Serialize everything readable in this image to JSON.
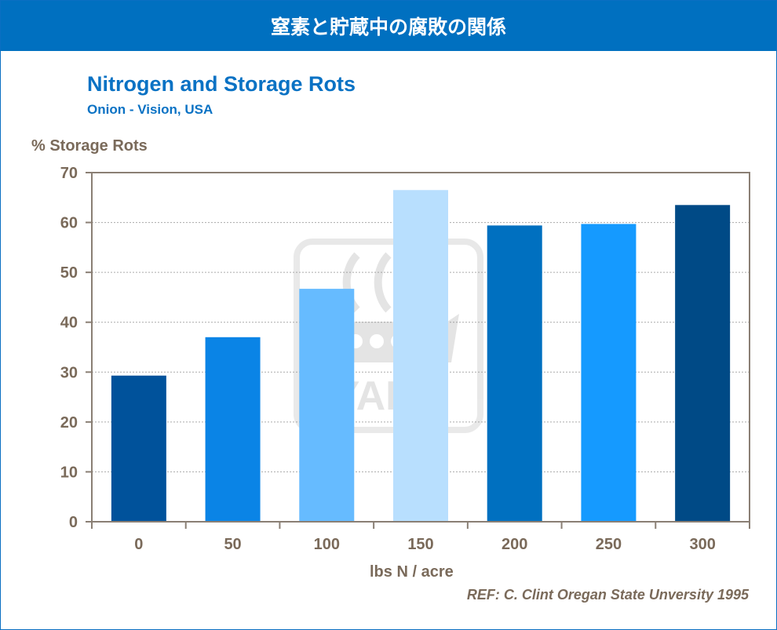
{
  "banner": {
    "title": "窒素と貯蔵中の腐敗の関係"
  },
  "chart_data": {
    "type": "bar",
    "title": "Nitrogen and Storage Rots",
    "subtitle": "Onion - Vision, USA",
    "ylabel": "% Storage Rots",
    "xlabel": "lbs N / acre",
    "categories": [
      "0",
      "50",
      "100",
      "150",
      "200",
      "250",
      "300"
    ],
    "values": [
      29.3,
      37.0,
      46.7,
      66.5,
      59.4,
      59.7,
      63.5
    ],
    "bar_colors": [
      "#00529b",
      "#0a84e6",
      "#66bbff",
      "#b8dffe",
      "#0070c0",
      "#159aff",
      "#004a86"
    ],
    "ylim": [
      0,
      70
    ],
    "yticks": [
      0,
      10,
      20,
      30,
      40,
      50,
      60,
      70
    ],
    "grid": true,
    "watermark": "YARA"
  },
  "reference": "REF: C. Clint Oregan State Unversity  1995"
}
